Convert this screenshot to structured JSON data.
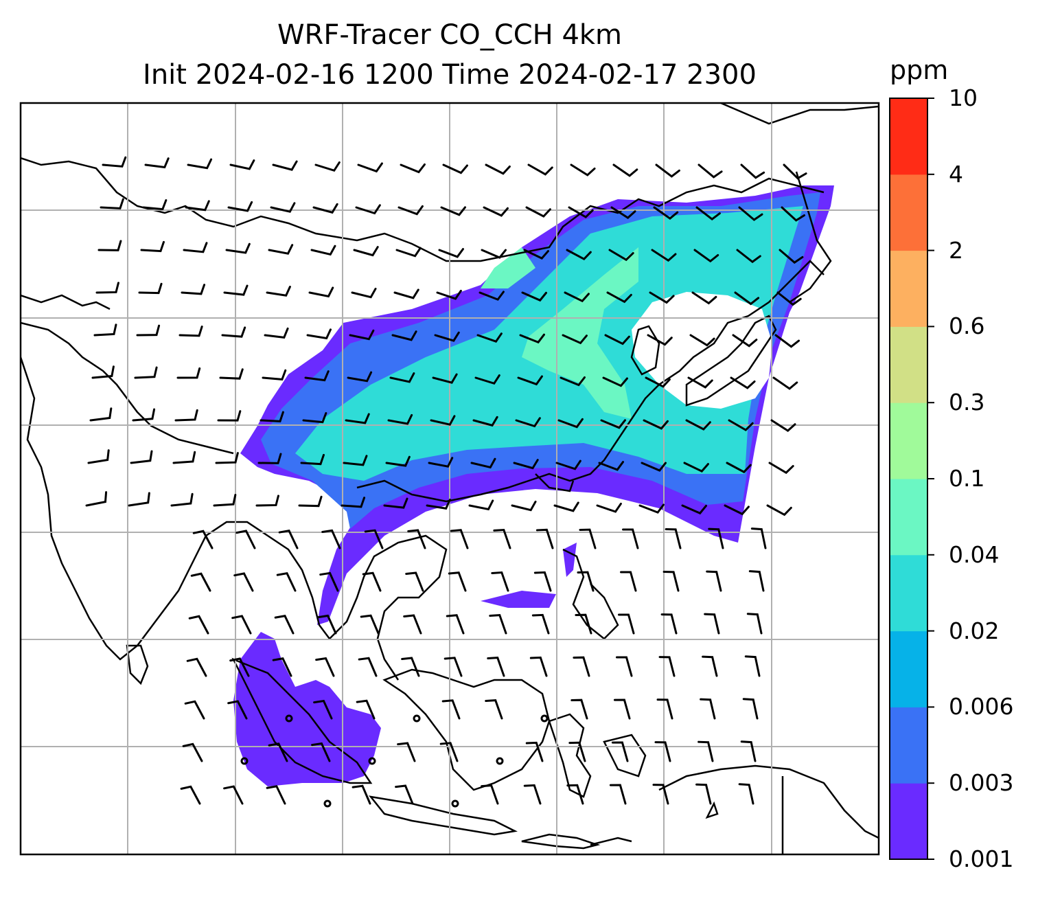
{
  "title": {
    "line1": "WRF-Tracer CO_CCH 4km",
    "line2": "Init 2024-02-16 1200 Time 2024-02-17 2300"
  },
  "colorbar": {
    "unit": "ppm",
    "levels": [
      "0.001",
      "0.003",
      "0.006",
      "0.02",
      "0.04",
      "0.1",
      "0.3",
      "0.6",
      "2",
      "4",
      "10"
    ],
    "colors": [
      "#6a2bff",
      "#3a72f5",
      "#06b2e8",
      "#2fdcd7",
      "#6bf7c3",
      "#a0fa9a",
      "#d1e086",
      "#fdb060",
      "#fd7038",
      "#ff2c16"
    ]
  },
  "map": {
    "gridlines": "on",
    "plume_colors": [
      "#6a2bff",
      "#3a72f5",
      "#2fdcd7",
      "#6bf7c3"
    ],
    "wind_barbs": "on",
    "coastlines": "on"
  }
}
